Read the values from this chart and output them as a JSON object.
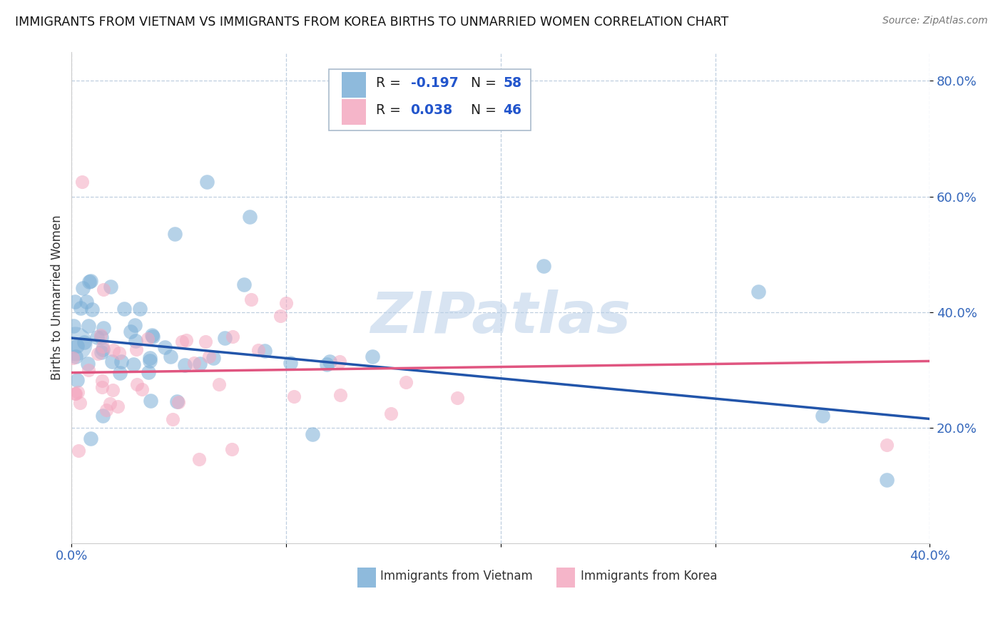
{
  "title": "IMMIGRANTS FROM VIETNAM VS IMMIGRANTS FROM KOREA BIRTHS TO UNMARRIED WOMEN CORRELATION CHART",
  "source": "Source: ZipAtlas.com",
  "ylabel": "Births to Unmarried Women",
  "blue_color": "#7aaed6",
  "pink_color": "#f4a8c0",
  "line_blue": "#2255aa",
  "line_pink": "#e05580",
  "blue_line_start_y": 0.355,
  "blue_line_end_y": 0.215,
  "pink_line_start_y": 0.295,
  "pink_line_end_y": 0.315,
  "xlim": [
    0.0,
    0.4
  ],
  "ylim": [
    0.0,
    0.85
  ],
  "ytick_vals": [
    0.2,
    0.4,
    0.6,
    0.8
  ],
  "ytick_labels": [
    "20.0%",
    "40.0%",
    "60.0%",
    "80.0%"
  ],
  "xtick_vals": [
    0.0,
    0.1,
    0.2,
    0.3,
    0.4
  ],
  "xtick_labels": [
    "0.0%",
    "",
    "",
    "",
    "40.0%"
  ],
  "legend_blue_r": "-0.197",
  "legend_blue_n": "58",
  "legend_pink_r": "0.038",
  "legend_pink_n": "46",
  "watermark": "ZIPatlas",
  "bottom_label_vietnam": "Immigrants from Vietnam",
  "bottom_label_korea": "Immigrants from Korea"
}
